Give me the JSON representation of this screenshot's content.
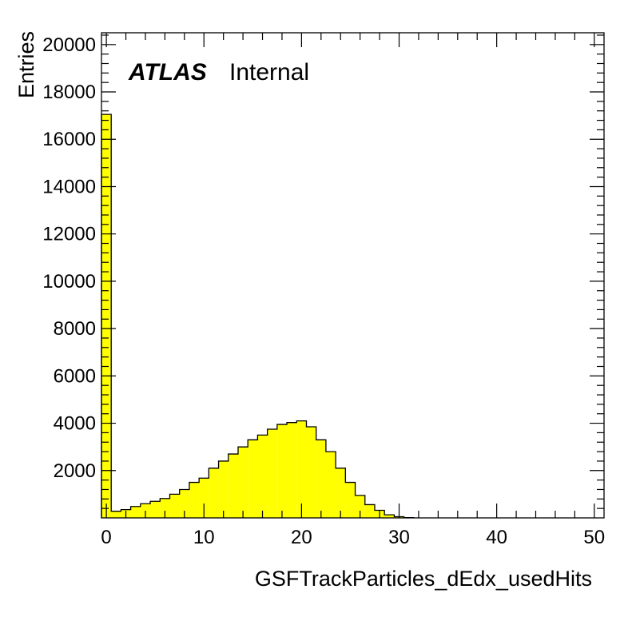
{
  "chart_data": {
    "type": "bar",
    "title": "",
    "xlabel": "GSFTrackParticles_dEdx_usedHits",
    "ylabel": "Entries",
    "xlim": [
      -0.5,
      51
    ],
    "ylim": [
      0,
      20500
    ],
    "bin_width": 1,
    "x_ticks": [
      0,
      10,
      20,
      30,
      40,
      50
    ],
    "y_ticks": [
      2000,
      4000,
      6000,
      8000,
      10000,
      12000,
      14000,
      16000,
      18000,
      20000
    ],
    "bin_low_edges": [
      -0.5,
      0.5,
      1.5,
      2.5,
      3.5,
      4.5,
      5.5,
      6.5,
      7.5,
      8.5,
      9.5,
      10.5,
      11.5,
      12.5,
      13.5,
      14.5,
      15.5,
      16.5,
      17.5,
      18.5,
      19.5,
      20.5,
      21.5,
      22.5,
      23.5,
      24.5,
      25.5,
      26.5,
      27.5,
      28.5,
      29.5,
      30.5
    ],
    "values": [
      17050,
      280,
      350,
      480,
      600,
      700,
      820,
      1000,
      1200,
      1500,
      1680,
      2100,
      2400,
      2700,
      3000,
      3300,
      3500,
      3750,
      3950,
      4030,
      4100,
      3850,
      3300,
      2800,
      2100,
      1500,
      950,
      560,
      320,
      130,
      50,
      10
    ],
    "fill_color": "#ffff00",
    "line_color": "#000000",
    "grid": false,
    "legend": "none",
    "atlas_label": "ATLAS",
    "atlas_sublabel": "Internal"
  }
}
